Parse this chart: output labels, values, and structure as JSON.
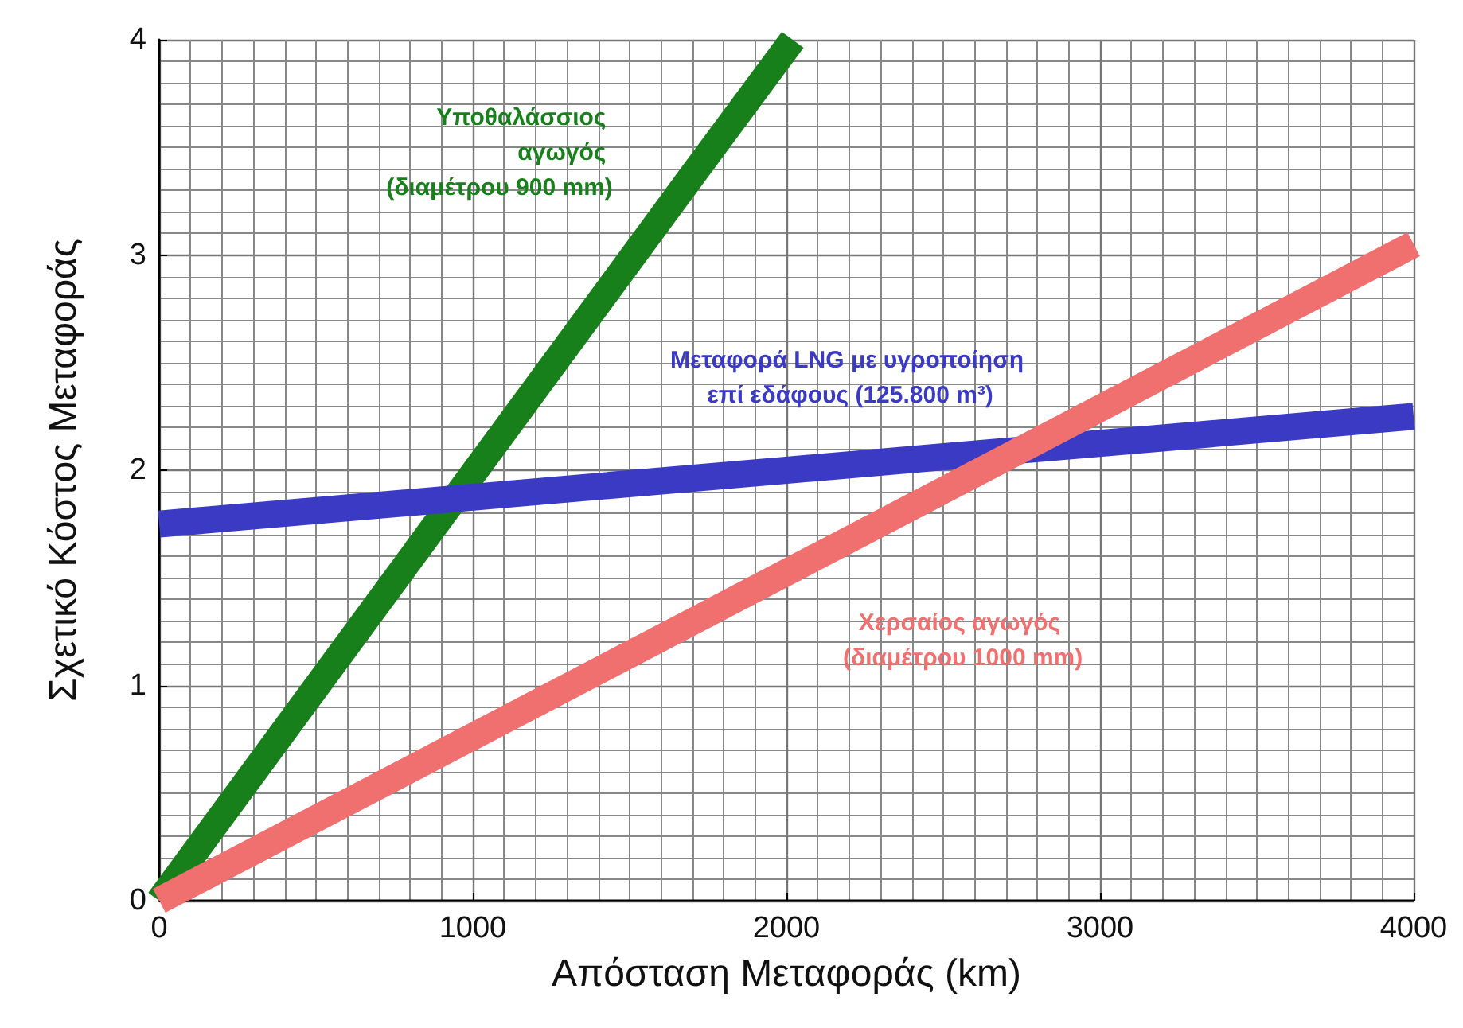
{
  "chart_data": {
    "type": "line",
    "xlabel": "Απόσταση Μεταφοράς (km)",
    "ylabel": "Σχετικό Κόστος Μεταφοράς",
    "series": [
      {
        "name": "Υποθαλάσσιος αγωγός (διαμέτρου 900 mm)",
        "color": "#17801a",
        "x": [
          0,
          1700,
          2020
        ],
        "values": [
          0,
          3.37,
          4
        ]
      },
      {
        "name": "Μεταφορά LNG με υγροποίηση επί εδάφους (125.800 m³)",
        "color": "#3a3ac4",
        "x": [
          0,
          2000,
          4000
        ],
        "values": [
          1.75,
          2.0,
          2.25
        ]
      },
      {
        "name": "Χερσαίος αγωγός (διαμέτρου 1000 mm)",
        "color": "#f07070",
        "x": [
          0,
          2400,
          4000
        ],
        "values": [
          0,
          1.83,
          3.05
        ]
      }
    ],
    "xlim": [
      0,
      4000
    ],
    "xticks": [
      0,
      1000,
      2000,
      3000,
      4000
    ],
    "ylim": [
      0,
      4
    ],
    "yticks": [
      0,
      1,
      2,
      3,
      4
    ],
    "grid": true,
    "marker": "none"
  }
}
